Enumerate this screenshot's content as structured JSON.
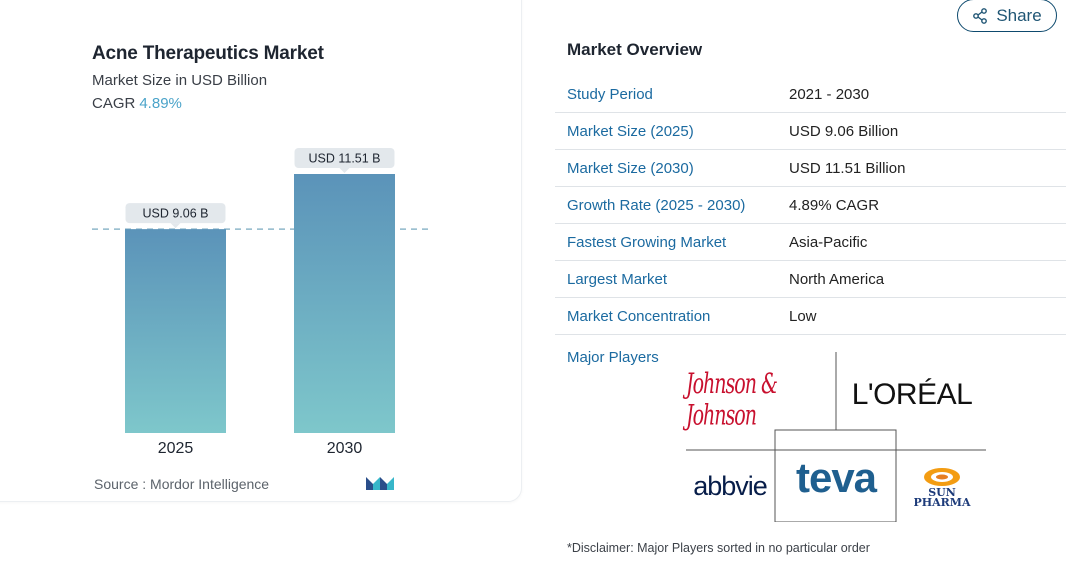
{
  "chart_data": {
    "type": "bar",
    "title": "Acne Therapeutics Market",
    "subtitle": "Market Size in USD Billion",
    "cagr_label": "CAGR",
    "cagr_value": "4.89%",
    "categories": [
      "2025",
      "2030"
    ],
    "values": [
      9.06,
      11.51
    ],
    "data_labels": [
      "USD 9.06 B",
      "USD 11.51 B"
    ],
    "ylim": [
      0,
      11.51
    ],
    "source": "Source :  Mordor Intelligence",
    "colors": {
      "bar_top": "#5b93b9",
      "bar_bottom": "#7ec7cb",
      "label_bg": "#e3e8ec",
      "dash": "#8fb8c9"
    }
  },
  "share": {
    "label": "Share",
    "icon": "share-icon"
  },
  "overview": {
    "title": "Market Overview",
    "rows": [
      {
        "key": "Study Period",
        "value": "2021 - 2030"
      },
      {
        "key": "Market Size (2025)",
        "value": "USD 9.06 Billion"
      },
      {
        "key": "Market Size (2030)",
        "value": "USD 11.51 Billion"
      },
      {
        "key": "Growth Rate (2025 - 2030)",
        "value": "4.89% CAGR"
      },
      {
        "key": "Fastest Growing Market",
        "value": "Asia-Pacific"
      },
      {
        "key": "Largest Market",
        "value": "North America"
      },
      {
        "key": "Market Concentration",
        "value": "Low"
      }
    ],
    "major_players_label": "Major Players",
    "players": [
      "Johnson & Johnson",
      "L'ORÉAL",
      "abbvie",
      "teva",
      "SUN PHARMA"
    ],
    "disclaimer": "*Disclaimer: Major Players sorted in no particular order"
  },
  "colors": {
    "accent": "#1b6aa0",
    "brand_dark": "#0e4a6e"
  }
}
